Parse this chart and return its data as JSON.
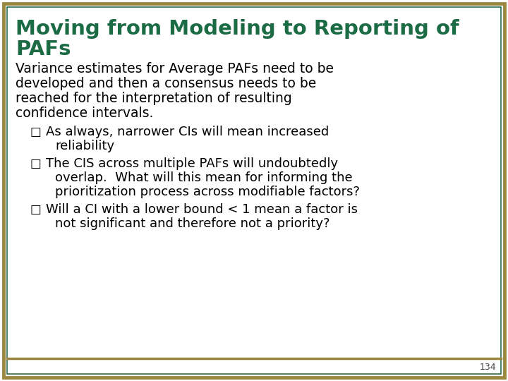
{
  "background_color": "#ffffff",
  "border_color_outer": "#9B8840",
  "border_color_inner": "#2E6B4F",
  "title_line1": "Moving from Modeling to Reporting of",
  "title_line2": "PAFs",
  "title_color": "#1B6B45",
  "body_lines": [
    "Variance estimates for Average PAFs need to be",
    "developed and then a consensus needs to be",
    "reached for the interpretation of resulting",
    "confidence intervals."
  ],
  "body_color": "#000000",
  "bullet_blocks": [
    [
      "As always, narrower CIs will mean increased",
      "reliability"
    ],
    [
      "The CIS across multiple PAFs will undoubtedly",
      "overlap.  What will this mean for informing the",
      "prioritization process across modifiable factors?"
    ],
    [
      "Will a CI with a lower bound < 1 mean a factor is",
      "not significant and therefore not a priority?"
    ]
  ],
  "bullet_color": "#000000",
  "page_number": "134",
  "title_fontsize": 21,
  "body_fontsize": 13.5,
  "bullet_fontsize": 13.0
}
